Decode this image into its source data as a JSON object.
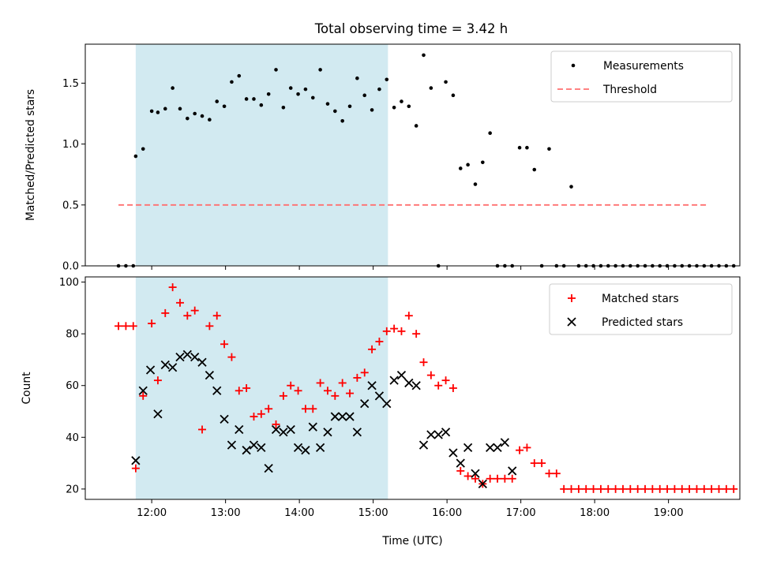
{
  "chart_data": {
    "type": "scatter",
    "title": "Total observing time = 3.42 h",
    "shaded_interval": [
      "11:47",
      "15:12"
    ],
    "shade_color": "#add8e6",
    "x_range": [
      "11:06",
      "19:58"
    ],
    "panels": [
      {
        "ylabel": "Matched/Predicted stars",
        "ylim": [
          0,
          1.82
        ],
        "yticks": [
          0.0,
          0.5,
          1.0,
          1.5
        ],
        "ytick_labels": [
          "0.0",
          "0.5",
          "1.0",
          "1.5"
        ],
        "show_xtick_labels": false,
        "legend": {
          "location": "upper right",
          "entries": [
            "Measurements",
            "Threshold"
          ]
        },
        "series": [
          {
            "name": "Measurements",
            "marker": "dot",
            "color": "#000000",
            "x": [
              "11:33",
              "11:39",
              "11:45",
              "11:47",
              "11:53",
              "12:00",
              "12:05",
              "12:11",
              "12:17",
              "12:23",
              "12:29",
              "12:35",
              "12:41",
              "12:47",
              "12:53",
              "12:59",
              "13:05",
              "13:11",
              "13:17",
              "13:23",
              "13:29",
              "13:35",
              "13:41",
              "13:47",
              "13:53",
              "13:59",
              "14:05",
              "14:11",
              "14:17",
              "14:23",
              "14:29",
              "14:35",
              "14:41",
              "14:47",
              "14:53",
              "14:59",
              "15:05",
              "15:11",
              "15:17",
              "15:23",
              "15:29",
              "15:35",
              "15:41",
              "15:47",
              "15:53",
              "15:59",
              "16:05",
              "16:11",
              "16:17",
              "16:23",
              "16:29",
              "16:35",
              "16:41",
              "16:47",
              "16:53",
              "16:59",
              "17:05",
              "17:11",
              "17:17",
              "17:23",
              "17:29",
              "17:35",
              "17:41",
              "17:47",
              "17:53",
              "17:59",
              "18:05",
              "18:11",
              "18:17",
              "18:23",
              "18:29",
              "18:35",
              "18:41",
              "18:47",
              "18:53",
              "18:59",
              "19:05",
              "19:11",
              "19:17",
              "19:23",
              "19:29",
              "19:35",
              "19:41",
              "19:47",
              "19:53"
            ],
            "y": [
              0,
              0,
              0,
              0.9,
              0.96,
              1.27,
              1.26,
              1.29,
              1.46,
              1.29,
              1.21,
              1.25,
              1.23,
              1.2,
              1.35,
              1.31,
              1.51,
              1.56,
              1.37,
              1.37,
              1.32,
              1.41,
              1.61,
              1.3,
              1.46,
              1.41,
              1.45,
              1.38,
              1.61,
              1.33,
              1.27,
              1.19,
              1.31,
              1.54,
              1.4,
              1.28,
              1.45,
              1.53,
              1.3,
              1.35,
              1.31,
              1.15,
              1.73,
              1.46,
              0,
              1.51,
              1.4,
              0.8,
              0.83,
              0.67,
              0.85,
              1.09,
              0,
              0,
              0,
              0.97,
              0.97,
              0.79,
              0,
              0.96,
              0,
              0,
              0.65,
              0,
              0,
              0,
              0,
              0,
              0,
              0,
              0,
              0,
              0,
              0,
              0,
              0,
              0,
              0,
              0,
              0,
              0,
              0,
              0,
              0,
              0
            ],
            "y_visible_note": ""
          },
          {
            "name": "Threshold",
            "style": "dashed",
            "color": "#ff7070",
            "x": [
              "11:33",
              "19:33"
            ],
            "y": [
              0.5,
              0.5
            ]
          }
        ]
      },
      {
        "ylabel": "Count",
        "ylim": [
          16,
          102
        ],
        "yticks": [
          20,
          40,
          60,
          80,
          100
        ],
        "ytick_labels": [
          "20",
          "40",
          "60",
          "80",
          "100"
        ],
        "xlabel": "Time (UTC)",
        "xticks": [
          "12:00",
          "13:00",
          "14:00",
          "15:00",
          "16:00",
          "17:00",
          "18:00",
          "19:00"
        ],
        "legend": {
          "location": "upper right",
          "entries": [
            "Matched stars",
            "Predicted stars"
          ]
        },
        "series": [
          {
            "name": "Matched stars",
            "marker": "plus",
            "color": "#ff0000",
            "x": [
              "11:33",
              "11:39",
              "11:45",
              "11:47",
              "11:53",
              "12:00",
              "12:05",
              "12:11",
              "12:17",
              "12:23",
              "12:29",
              "12:35",
              "12:41",
              "12:47",
              "12:53",
              "12:59",
              "13:05",
              "13:11",
              "13:17",
              "13:23",
              "13:29",
              "13:35",
              "13:41",
              "13:47",
              "13:53",
              "13:59",
              "14:05",
              "14:11",
              "14:17",
              "14:23",
              "14:29",
              "14:35",
              "14:41",
              "14:47",
              "14:53",
              "14:59",
              "15:05",
              "15:11",
              "15:17",
              "15:23",
              "15:29",
              "15:35",
              "15:41",
              "15:47",
              "15:53",
              "15:59",
              "16:05",
              "16:11",
              "16:17",
              "16:23",
              "16:29",
              "16:35",
              "16:41",
              "16:47",
              "16:53",
              "16:59",
              "17:05",
              "17:11",
              "17:17",
              "17:23",
              "17:29",
              "17:35",
              "17:41",
              "17:47",
              "17:53",
              "17:59",
              "18:05",
              "18:11",
              "18:17",
              "18:23",
              "18:29",
              "18:35",
              "18:41",
              "18:47",
              "18:53",
              "18:59",
              "19:05",
              "19:11",
              "19:17",
              "19:23",
              "19:29",
              "19:35",
              "19:41",
              "19:47",
              "19:53"
            ],
            "y": [
              83,
              83,
              83,
              28,
              56,
              84,
              62,
              88,
              98,
              92,
              87,
              89,
              43,
              83,
              87,
              76,
              71,
              58,
              59,
              48,
              49,
              51,
              45,
              56,
              60,
              58,
              51,
              51,
              61,
              58,
              56,
              61,
              57,
              63,
              65,
              74,
              77,
              81,
              82,
              81,
              87,
              80,
              69,
              64,
              60,
              62,
              59,
              27,
              25,
              24,
              22,
              24,
              24,
              24,
              24,
              35,
              36,
              30,
              30,
              26,
              26,
              20,
              20,
              20,
              20,
              20,
              20,
              20,
              20,
              20,
              20,
              20,
              20,
              20,
              20,
              20,
              20,
              20,
              20,
              20,
              20,
              20,
              20,
              20,
              20
            ]
          },
          {
            "name": "Predicted stars",
            "marker": "x",
            "color": "#000000",
            "x": [
              "11:47",
              "11:53",
              "11:59",
              "12:05",
              "12:11",
              "12:17",
              "12:23",
              "12:29",
              "12:35",
              "12:41",
              "12:47",
              "12:53",
              "12:59",
              "13:05",
              "13:11",
              "13:17",
              "13:23",
              "13:29",
              "13:35",
              "13:41",
              "13:47",
              "13:53",
              "13:59",
              "14:05",
              "14:11",
              "14:17",
              "14:23",
              "14:29",
              "14:35",
              "14:41",
              "14:47",
              "14:53",
              "14:59",
              "15:05",
              "15:11",
              "15:17",
              "15:23",
              "15:29",
              "15:35",
              "15:41",
              "15:47",
              "15:53",
              "15:59",
              "16:05",
              "16:11",
              "16:17",
              "16:23",
              "16:29",
              "16:35",
              "16:41",
              "16:47",
              "16:53"
            ],
            "y": [
              31,
              58,
              66,
              49,
              68,
              67,
              71,
              72,
              71,
              69,
              64,
              58,
              47,
              37,
              43,
              35,
              37,
              36,
              28,
              43,
              42,
              43,
              36,
              35,
              44,
              36,
              42,
              48,
              48,
              48,
              42,
              53,
              60,
              56,
              53,
              62,
              64,
              61,
              60,
              37,
              41,
              41,
              42,
              34,
              30,
              36,
              26,
              22,
              36,
              36,
              38,
              27
            ]
          }
        ]
      }
    ]
  }
}
